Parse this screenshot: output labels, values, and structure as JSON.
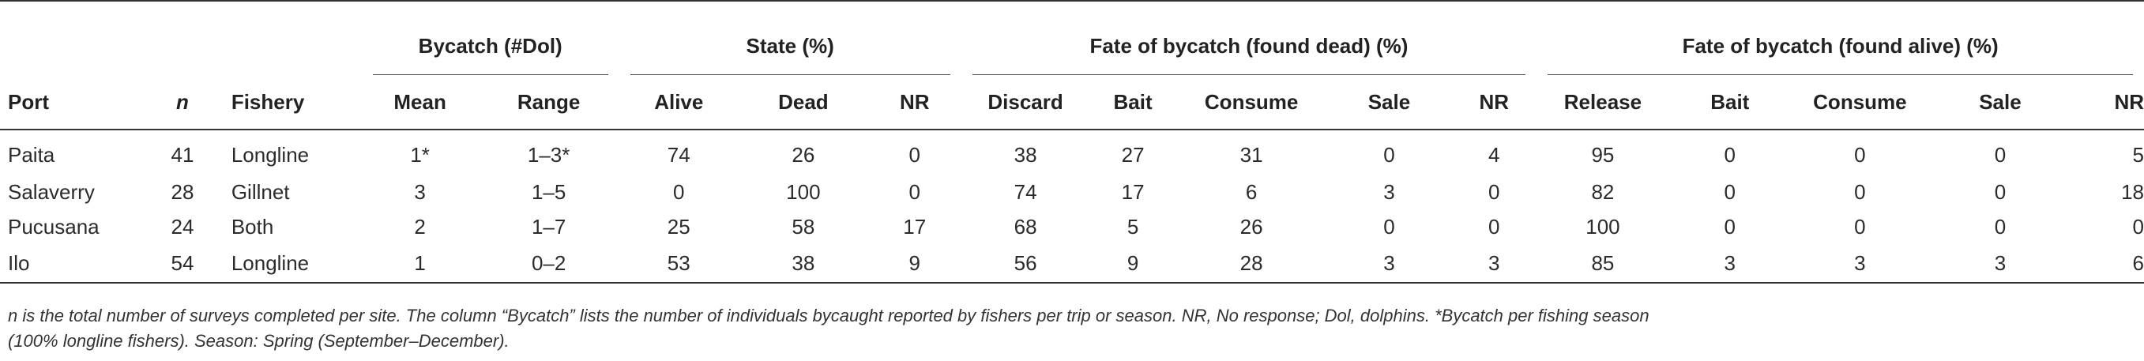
{
  "table": {
    "groups": {
      "bycatch": "Bycatch (#Dol)",
      "state": "State (%)",
      "fate_dead": "Fate of bycatch (found dead) (%)",
      "fate_alive": "Fate of bycatch (found alive) (%)"
    },
    "columns": {
      "port": "Port",
      "n": "n",
      "fishery": "Fishery",
      "mean": "Mean",
      "range": "Range",
      "alive": "Alive",
      "dead": "Dead",
      "nr1": "NR",
      "discard": "Discard",
      "bait1": "Bait",
      "consume1": "Consume",
      "sale1": "Sale",
      "nr2": "NR",
      "release": "Release",
      "bait2": "Bait",
      "consume2": "Consume",
      "sale2": "Sale",
      "nr3": "NR"
    },
    "rows": [
      [
        "Paita",
        "41",
        "Longline",
        "1*",
        "1–3*",
        "74",
        "26",
        "0",
        "38",
        "27",
        "31",
        "0",
        "4",
        "95",
        "0",
        "0",
        "0",
        "5"
      ],
      [
        "Salaverry",
        "28",
        "Gillnet",
        "3",
        "1–5",
        "0",
        "100",
        "0",
        "74",
        "17",
        "6",
        "3",
        "0",
        "82",
        "0",
        "0",
        "0",
        "18"
      ],
      [
        "Pucusana",
        "24",
        "Both",
        "2",
        "1–7",
        "25",
        "58",
        "17",
        "68",
        "5",
        "26",
        "0",
        "0",
        "100",
        "0",
        "0",
        "0",
        "0"
      ],
      [
        "Ilo",
        "54",
        "Longline",
        "1",
        "0–2",
        "53",
        "38",
        "9",
        "56",
        "9",
        "28",
        "3",
        "3",
        "85",
        "3",
        "3",
        "3",
        "6"
      ]
    ]
  },
  "footnote": {
    "line1": "n is the total number of surveys completed per site. The column “Bycatch” lists the number of individuals bycaught reported by fishers per trip or season. NR, No response; Dol, dolphins. *Bycatch per fishing season",
    "line2": "(100% longline fishers). Season: Spring (September–December)."
  }
}
